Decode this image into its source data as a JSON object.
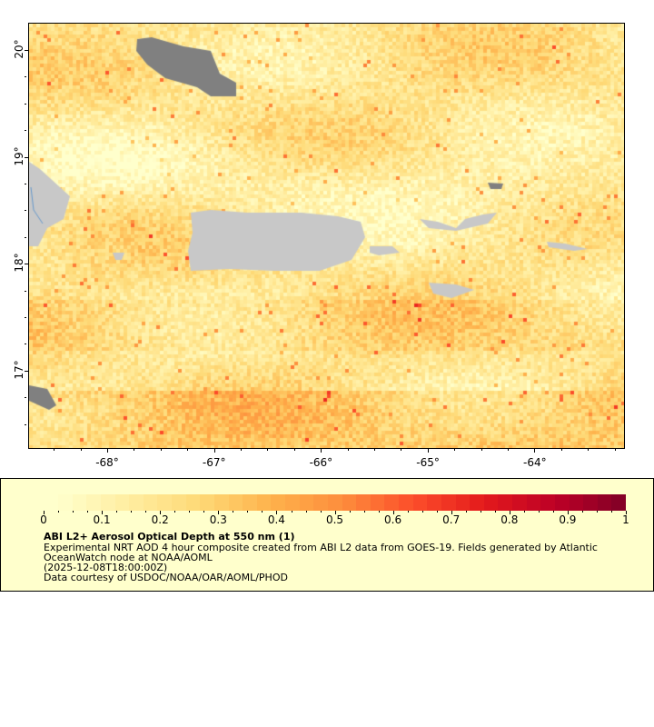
{
  "map": {
    "lat_labels": [
      "20°",
      "19°",
      "18°",
      "17°"
    ],
    "lon_labels": [
      "-68°",
      "-67°",
      "-66°",
      "-65°",
      "-64°"
    ],
    "colors": {
      "land": "#c8c8c8",
      "no_data": "#808080",
      "coast": "#6699cc"
    }
  },
  "legend": {
    "ticks": [
      "0",
      "0.1",
      "0.2",
      "0.3",
      "0.4",
      "0.5",
      "0.6",
      "0.7",
      "0.8",
      "0.9",
      "1"
    ],
    "range": [
      0,
      1
    ],
    "colormap": [
      "#ffffcc",
      "#ffeda0",
      "#fed976",
      "#feb24c",
      "#fd8d3c",
      "#fc4e2a",
      "#e31a1c",
      "#bd0026",
      "#800026"
    ],
    "title": "ABI L2+ Aerosol Optical Depth at 550 nm (1)",
    "line1": "Experimental NRT AOD 4 hour composite created from ABI L2 data from GOES-19. Fields generated by Atlantic",
    "line2": "OceanWatch node at NOAA/AOML",
    "line3": "(2025-12-08T18:00:00Z)",
    "line4": "Data courtesy of USDOC/NOAA/OAR/AOML/PHOD"
  }
}
